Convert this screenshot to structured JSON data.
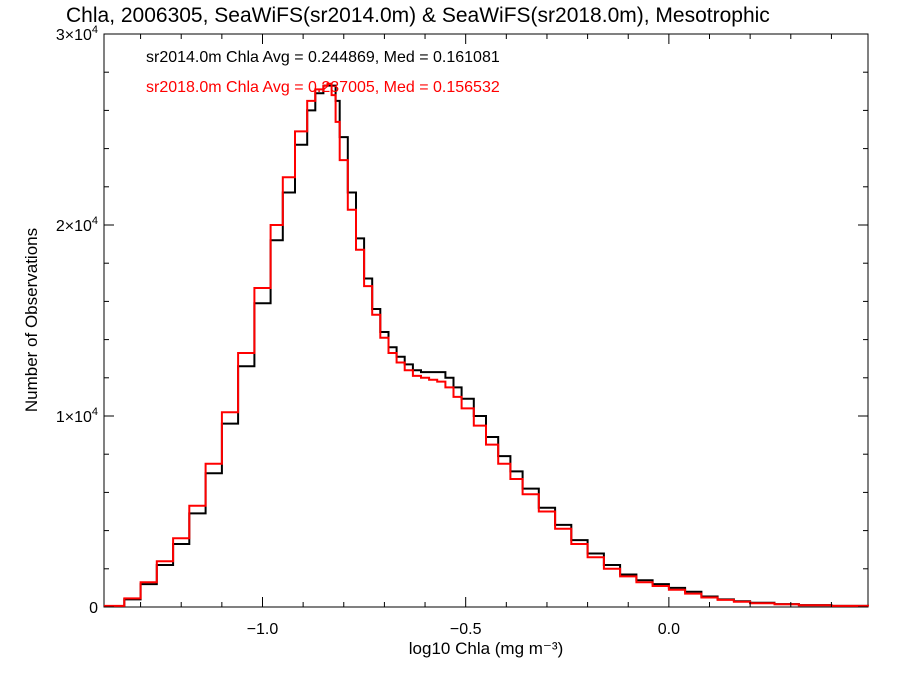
{
  "chart_data": {
    "type": "line",
    "style": "step-histogram",
    "title": "Chla, 2006305, SeaWiFS(sr2014.0m) & SeaWiFS(sr2018.0m), Mesotrophic",
    "xlabel": "log10 Chla (mg m⁻³)",
    "ylabel": "Number of Observations",
    "xlim": [
      -1.39,
      0.49
    ],
    "ylim": [
      0,
      30000
    ],
    "x_ticks": [
      {
        "value": -1.0,
        "label": "−1.0"
      },
      {
        "value": -0.5,
        "label": "−0.5"
      },
      {
        "value": 0.0,
        "label": "0.0"
      }
    ],
    "y_ticks": [
      {
        "value": 0,
        "mant": "0",
        "exp": ""
      },
      {
        "value": 10000,
        "mant": "1×10",
        "exp": "4"
      },
      {
        "value": 20000,
        "mant": "2×10",
        "exp": "4"
      },
      {
        "value": 30000,
        "mant": "3×10",
        "exp": "4"
      }
    ],
    "annotations": [
      {
        "text": "sr2014.0m Chla Avg = 0.244869, Med = 0.161081",
        "color": "#000000"
      },
      {
        "text": "sr2018.0m Chla Avg = 0.237005, Med = 0.156532",
        "color": "#ff0000"
      }
    ],
    "series": [
      {
        "color": "#000000",
        "points": [
          [
            -1.39,
            50
          ],
          [
            -1.34,
            400
          ],
          [
            -1.3,
            1200
          ],
          [
            -1.26,
            2200
          ],
          [
            -1.22,
            3300
          ],
          [
            -1.18,
            4900
          ],
          [
            -1.14,
            7000
          ],
          [
            -1.1,
            9600
          ],
          [
            -1.06,
            12600
          ],
          [
            -1.02,
            15900
          ],
          [
            -0.98,
            19200
          ],
          [
            -0.95,
            21700
          ],
          [
            -0.92,
            24200
          ],
          [
            -0.89,
            26000
          ],
          [
            -0.87,
            26900
          ],
          [
            -0.85,
            27300
          ],
          [
            -0.83,
            27300
          ],
          [
            -0.82,
            26500
          ],
          [
            -0.81,
            24600
          ],
          [
            -0.79,
            21700
          ],
          [
            -0.77,
            19300
          ],
          [
            -0.75,
            17200
          ],
          [
            -0.73,
            15600
          ],
          [
            -0.71,
            14400
          ],
          [
            -0.69,
            13600
          ],
          [
            -0.67,
            13100
          ],
          [
            -0.65,
            12700
          ],
          [
            -0.63,
            12400
          ],
          [
            -0.61,
            12300
          ],
          [
            -0.59,
            12300
          ],
          [
            -0.57,
            12300
          ],
          [
            -0.55,
            12000
          ],
          [
            -0.53,
            11500
          ],
          [
            -0.51,
            10900
          ],
          [
            -0.48,
            10000
          ],
          [
            -0.45,
            8900
          ],
          [
            -0.42,
            7900
          ],
          [
            -0.39,
            7100
          ],
          [
            -0.36,
            6200
          ],
          [
            -0.32,
            5200
          ],
          [
            -0.28,
            4300
          ],
          [
            -0.24,
            3500
          ],
          [
            -0.2,
            2800
          ],
          [
            -0.16,
            2200
          ],
          [
            -0.12,
            1700
          ],
          [
            -0.08,
            1400
          ],
          [
            -0.04,
            1200
          ],
          [
            0.0,
            1000
          ],
          [
            0.04,
            800
          ],
          [
            0.08,
            550
          ],
          [
            0.12,
            400
          ],
          [
            0.16,
            300
          ],
          [
            0.2,
            220
          ],
          [
            0.26,
            150
          ],
          [
            0.32,
            100
          ],
          [
            0.4,
            60
          ],
          [
            0.49,
            30
          ]
        ]
      },
      {
        "color": "#ff0000",
        "points": [
          [
            -1.39,
            60
          ],
          [
            -1.34,
            450
          ],
          [
            -1.3,
            1300
          ],
          [
            -1.26,
            2400
          ],
          [
            -1.22,
            3600
          ],
          [
            -1.18,
            5300
          ],
          [
            -1.14,
            7500
          ],
          [
            -1.1,
            10200
          ],
          [
            -1.06,
            13300
          ],
          [
            -1.02,
            16700
          ],
          [
            -0.98,
            20000
          ],
          [
            -0.95,
            22500
          ],
          [
            -0.92,
            24900
          ],
          [
            -0.89,
            26500
          ],
          [
            -0.87,
            27100
          ],
          [
            -0.85,
            27300
          ],
          [
            -0.84,
            27400
          ],
          [
            -0.83,
            26800
          ],
          [
            -0.82,
            25400
          ],
          [
            -0.81,
            23400
          ],
          [
            -0.79,
            20800
          ],
          [
            -0.77,
            18700
          ],
          [
            -0.75,
            16800
          ],
          [
            -0.73,
            15300
          ],
          [
            -0.71,
            14100
          ],
          [
            -0.69,
            13300
          ],
          [
            -0.67,
            12800
          ],
          [
            -0.65,
            12400
          ],
          [
            -0.63,
            12100
          ],
          [
            -0.61,
            12000
          ],
          [
            -0.59,
            11900
          ],
          [
            -0.57,
            11800
          ],
          [
            -0.55,
            11500
          ],
          [
            -0.53,
            11000
          ],
          [
            -0.51,
            10400
          ],
          [
            -0.48,
            9500
          ],
          [
            -0.45,
            8500
          ],
          [
            -0.42,
            7500
          ],
          [
            -0.39,
            6700
          ],
          [
            -0.36,
            5900
          ],
          [
            -0.32,
            5000
          ],
          [
            -0.28,
            4100
          ],
          [
            -0.24,
            3300
          ],
          [
            -0.2,
            2600
          ],
          [
            -0.16,
            2000
          ],
          [
            -0.12,
            1600
          ],
          [
            -0.08,
            1300
          ],
          [
            -0.04,
            1100
          ],
          [
            0.0,
            900
          ],
          [
            0.04,
            700
          ],
          [
            0.08,
            500
          ],
          [
            0.12,
            370
          ],
          [
            0.16,
            280
          ],
          [
            0.2,
            200
          ],
          [
            0.26,
            140
          ],
          [
            0.32,
            90
          ],
          [
            0.4,
            55
          ],
          [
            0.49,
            25
          ]
        ]
      }
    ]
  }
}
